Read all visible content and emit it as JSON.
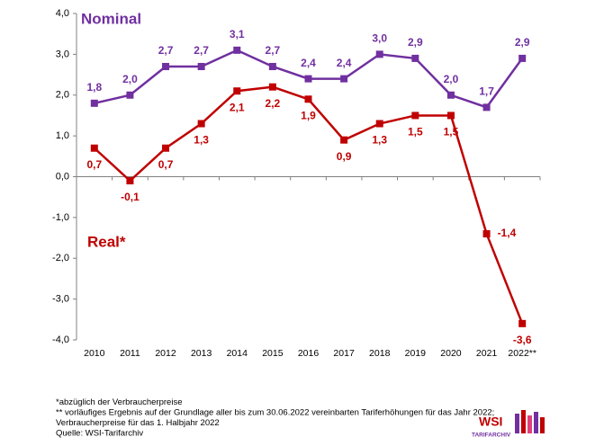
{
  "chart_data": {
    "type": "line",
    "categories": [
      "2010",
      "2011",
      "2012",
      "2013",
      "2014",
      "2015",
      "2016",
      "2017",
      "2018",
      "2019",
      "2020",
      "2021",
      "2022**"
    ],
    "series": [
      {
        "name": "Nominal",
        "color": "#7030a0",
        "values": [
          1.8,
          2.0,
          2.7,
          2.7,
          3.1,
          2.7,
          2.4,
          2.4,
          3.0,
          2.9,
          2.0,
          1.7,
          2.9
        ],
        "value_labels": [
          "1,8",
          "2,0",
          "2,7",
          "2,7",
          "3,1",
          "2,7",
          "2,4",
          "2,4",
          "3,0",
          "2,9",
          "2,0",
          "1,7",
          "2,9"
        ]
      },
      {
        "name": "Real*",
        "color": "#c00000",
        "values": [
          0.7,
          -0.1,
          0.7,
          1.3,
          2.1,
          2.2,
          1.9,
          0.9,
          1.3,
          1.5,
          1.5,
          -1.4,
          -3.6
        ],
        "value_labels": [
          "0,7",
          "-0,1",
          "0,7",
          "1,3",
          "2,1",
          "2,2",
          "1,9",
          "0,9",
          "1,3",
          "1,5",
          "1,5",
          "-1,4",
          "-3,6"
        ]
      }
    ],
    "ylim": [
      -4,
      4
    ],
    "yticks": [
      {
        "value": -4,
        "label": "-4,0"
      },
      {
        "value": -3,
        "label": "-3,0"
      },
      {
        "value": -2,
        "label": "-2,0"
      },
      {
        "value": -1,
        "label": "-1,0"
      },
      {
        "value": 0,
        "label": "0,0"
      },
      {
        "value": 1,
        "label": "1,0"
      },
      {
        "value": 2,
        "label": "2,0"
      },
      {
        "value": 3,
        "label": "3,0"
      },
      {
        "value": 4,
        "label": "4,0"
      }
    ],
    "grid": false,
    "footnotes": [
      "*abzüglich der Verbraucherpreise",
      "** vorläufiges Ergebnis auf der Grundlage aller bis zum 30.06.2022 vereinbarten Tariferhöhungen für das Jahr 2022;",
      "Verbraucherpreise für das 1. Halbjahr 2022",
      "Quelle: WSI-Tarifarchiv"
    ],
    "logo": {
      "title": "WSI",
      "subtitle": "TARIFARCHIV"
    }
  }
}
